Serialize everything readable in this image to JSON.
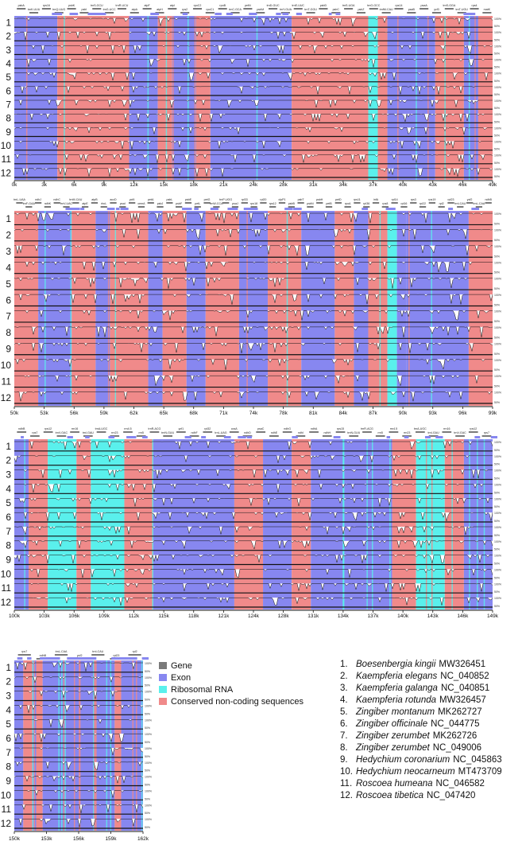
{
  "legend": {
    "items": [
      {
        "label": "Gene",
        "color": "#7a7a7a"
      },
      {
        "label": "Exon",
        "color": "#8787f0"
      },
      {
        "label": "Ribosomal RNA",
        "color": "#5af0ec"
      },
      {
        "label": "Conserved non-coding sequences",
        "color": "#f08a8a"
      }
    ]
  },
  "species": [
    {
      "num": "1.",
      "name": "Boesenbergia kingii",
      "acc": "MW326451"
    },
    {
      "num": "2.",
      "name": "Kaempferia elegans",
      "acc": "NC_040852"
    },
    {
      "num": "3.",
      "name": "Kaempferia galanga",
      "acc": "NC_040851"
    },
    {
      "num": "4.",
      "name": "Kaempferia rotunda",
      "acc": "MW326457"
    },
    {
      "num": "5.",
      "name": "Zingiber montanum",
      "acc": "MK262727"
    },
    {
      "num": "6.",
      "name": "Zingiber officinale",
      "acc": "NC_044775"
    },
    {
      "num": "7.",
      "name": "Zingiber zerumbet",
      "acc": "MK262726"
    },
    {
      "num": "8.",
      "name": "Zingiber zerumbet",
      "acc": "NC_049006"
    },
    {
      "num": "9.",
      "name": "Hedychium coronarium",
      "acc": "NC_045863"
    },
    {
      "num": "10.",
      "name": "Hedychium neocarneum",
      "acc": "MT473709"
    },
    {
      "num": "11.",
      "name": "Roscoea humeana",
      "acc": "NC_046582"
    },
    {
      "num": "12.",
      "name": "Roscoea tibetica",
      "acc": "NC_047420"
    }
  ],
  "chart_data": {
    "type": "area",
    "rows": [
      "1",
      "2",
      "3",
      "4",
      "5",
      "6",
      "7",
      "8",
      "9",
      "10",
      "11",
      "12"
    ],
    "percent_labels": [
      "100%",
      "50%"
    ],
    "panels": [
      {
        "ticks": [
          "0k",
          "3k",
          "6k",
          "9k",
          "12k",
          "15k",
          "18k",
          "21k",
          "24k",
          "28k",
          "31k",
          "34k",
          "37k",
          "40k",
          "43k",
          "46k",
          "49k"
        ],
        "genes": [
          "psbA",
          "trnK-UUU",
          "rps16",
          "trnQ-UUG",
          "psbK",
          "psbI",
          "trnS-GCU",
          "trnG-UCC",
          "trnR-UCU",
          "atpA",
          "atpF",
          "atpH",
          "atpI",
          "rps2",
          "rpoC2",
          "rpoC1",
          "rpoB",
          "trnC-GCA",
          "petN",
          "psbM",
          "trnD-GUC",
          "trnY-GUA",
          "trnE-UUC",
          "trnT-GGU",
          "psbD",
          "psbC",
          "trnS-UGA",
          "psbZ",
          "trnG-GCC",
          "trnfM-CAU",
          "rps14",
          "psaB",
          "psaA",
          "ycf3",
          "trnS-GGA",
          "trnT-UGU",
          "rps4",
          "matK"
        ]
      },
      {
        "ticks": [
          "50k",
          "53k",
          "56k",
          "59k",
          "62k",
          "65k",
          "68k",
          "71k",
          "74k",
          "78k",
          "81k",
          "84k",
          "87k",
          "90k",
          "93k",
          "96k",
          "99k"
        ],
        "genes": [
          "trnL-UAA",
          "trnF-GAA",
          "ndhJ",
          "ndhK",
          "ndhC",
          "trnV-UAC",
          "trnM-CAU",
          "atpE",
          "atpB",
          "rbcL",
          "accD",
          "psaI",
          "ycf4",
          "cemA",
          "petA",
          "psbJ",
          "psbL",
          "psbF",
          "psbE",
          "petL",
          "petG",
          "trnW-CCA",
          "trnP-UGG",
          "psaJ",
          "rpl33",
          "rps18",
          "rpl20",
          "rps12",
          "clpP1",
          "psbB",
          "psbT",
          "psbN",
          "psbH",
          "petB",
          "petD",
          "rpoA",
          "rps11",
          "rpl36",
          "infA",
          "rps8",
          "rpl14",
          "rpl16",
          "rps3",
          "rpl22",
          "rps19",
          "rpl2",
          "rpl23",
          "trnI-CAU",
          "ycf2",
          "trnL-CAA",
          "ndhB"
        ]
      },
      {
        "ticks": [
          "100k",
          "103k",
          "106k",
          "109k",
          "112k",
          "115k",
          "118k",
          "121k",
          "124k",
          "128k",
          "131k",
          "134k",
          "137k",
          "140k",
          "143k",
          "146k",
          "149k"
        ],
        "genes": [
          "ndhB",
          "rps7",
          "rps12",
          "trnV-GAC",
          "rrn16",
          "trnI-GAU",
          "trnA-UGC",
          "rrn23",
          "rrn4.5",
          "rrn5",
          "trnR-ACG",
          "trnN-GUU",
          "ycf1",
          "ndhF",
          "rpl32",
          "trnL-UAG",
          "ccsA",
          "ndhD",
          "psaC",
          "ndhE",
          "ndhG",
          "ndhI",
          "ndhA",
          "ndhH",
          "rps15",
          "trnN-GUU",
          "trnR-ACG",
          "rrn5",
          "rrn4.5",
          "rrn23",
          "trnA-UGC",
          "trnI-GAU",
          "rrn16",
          "trnV-GAC",
          "rps12",
          "rps7"
        ]
      },
      {
        "ticks": [
          "150k",
          "153k",
          "156k",
          "159k",
          "162k"
        ],
        "genes": [
          "rps7",
          "ndhB",
          "trnL-CAA",
          "ycf2",
          "trnI-CAU",
          "rpl23",
          "rpl2"
        ]
      }
    ]
  }
}
